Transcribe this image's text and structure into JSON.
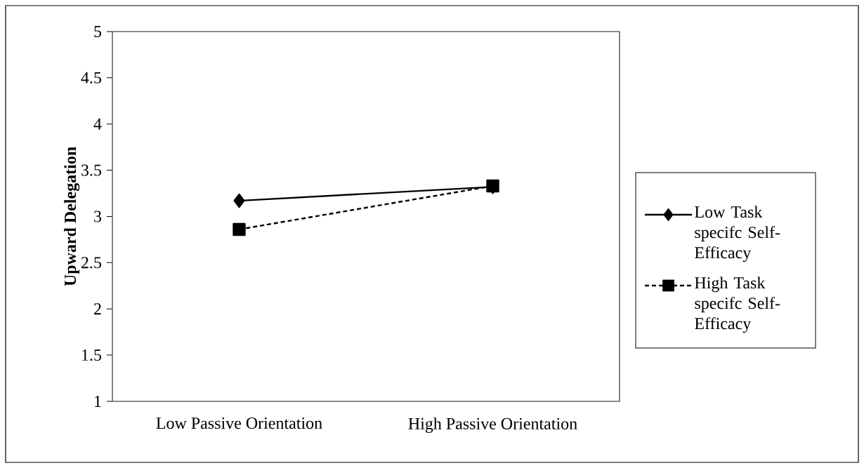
{
  "chart_data": {
    "type": "line",
    "ylabel": "Upward Delegation",
    "categories": [
      "Low Passive Orientation",
      "High Passive Orientation"
    ],
    "series": [
      {
        "name": "Low Task specifc Self-Efficacy",
        "color": "#000000",
        "values": [
          3.17,
          3.32
        ],
        "marker": "diamond",
        "line_style": "solid"
      },
      {
        "name": "High Task specifc Self-Efficacy",
        "color": "#000000",
        "values": [
          2.86,
          3.33
        ],
        "marker": "square",
        "line_style": "dashed"
      }
    ],
    "ylim": [
      1,
      5
    ],
    "yticks": [
      1,
      1.5,
      2,
      2.5,
      3,
      3.5,
      4,
      4.5,
      5
    ],
    "grid": false,
    "legend": "right"
  }
}
